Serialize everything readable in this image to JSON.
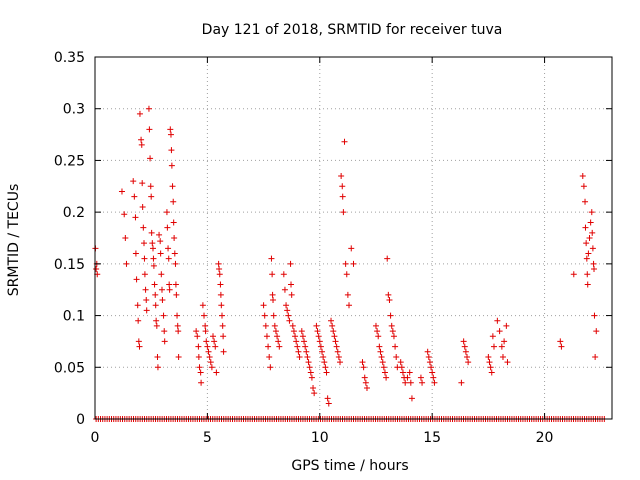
{
  "chart_data": {
    "type": "scatter",
    "title": "Day 121 of 2018, SRMTID for receiver tuva",
    "xlabel": "GPS time / hours",
    "ylabel": "SRMTID / TECUs",
    "xlim": [
      0,
      23
    ],
    "ylim": [
      0,
      0.35
    ],
    "xticks": [
      0,
      5,
      10,
      15,
      20
    ],
    "yticks": [
      0,
      0.05,
      0.1,
      0.15,
      0.2,
      0.25,
      0.3,
      0.35
    ],
    "ytick_labels": [
      "0",
      "0.05",
      "0.1",
      "0.15",
      "0.2",
      "0.25",
      "0.3",
      "0.35"
    ],
    "grid": true,
    "marker": "+",
    "color": "#e00000",
    "zero_line": {
      "x_start": 0.05,
      "x_end": 22.7,
      "y": 0
    },
    "points": [
      [
        0.02,
        0.165
      ],
      [
        0.05,
        0.145
      ],
      [
        0.08,
        0.15
      ],
      [
        0.1,
        0.14
      ],
      [
        1.2,
        0.22
      ],
      [
        1.3,
        0.198
      ],
      [
        1.35,
        0.175
      ],
      [
        1.4,
        0.15
      ],
      [
        1.7,
        0.23
      ],
      [
        1.75,
        0.215
      ],
      [
        1.8,
        0.195
      ],
      [
        1.82,
        0.16
      ],
      [
        1.85,
        0.135
      ],
      [
        1.9,
        0.11
      ],
      [
        1.92,
        0.095
      ],
      [
        1.95,
        0.075
      ],
      [
        1.98,
        0.07
      ],
      [
        2.0,
        0.295
      ],
      [
        2.05,
        0.27
      ],
      [
        2.08,
        0.265
      ],
      [
        2.1,
        0.228
      ],
      [
        2.12,
        0.205
      ],
      [
        2.15,
        0.185
      ],
      [
        2.18,
        0.17
      ],
      [
        2.2,
        0.155
      ],
      [
        2.22,
        0.14
      ],
      [
        2.25,
        0.125
      ],
      [
        2.28,
        0.115
      ],
      [
        2.3,
        0.105
      ],
      [
        2.4,
        0.3
      ],
      [
        2.42,
        0.28
      ],
      [
        2.45,
        0.252
      ],
      [
        2.48,
        0.225
      ],
      [
        2.5,
        0.215
      ],
      [
        2.52,
        0.18
      ],
      [
        2.55,
        0.17
      ],
      [
        2.58,
        0.165
      ],
      [
        2.6,
        0.155
      ],
      [
        2.62,
        0.148
      ],
      [
        2.65,
        0.13
      ],
      [
        2.68,
        0.12
      ],
      [
        2.7,
        0.11
      ],
      [
        2.72,
        0.095
      ],
      [
        2.75,
        0.09
      ],
      [
        2.78,
        0.06
      ],
      [
        2.8,
        0.05
      ],
      [
        2.85,
        0.178
      ],
      [
        2.9,
        0.172
      ],
      [
        2.92,
        0.16
      ],
      [
        2.95,
        0.14
      ],
      [
        2.98,
        0.125
      ],
      [
        3.0,
        0.115
      ],
      [
        3.05,
        0.1
      ],
      [
        3.08,
        0.085
      ],
      [
        3.1,
        0.075
      ],
      [
        3.2,
        0.2
      ],
      [
        3.22,
        0.185
      ],
      [
        3.25,
        0.165
      ],
      [
        3.28,
        0.155
      ],
      [
        3.3,
        0.13
      ],
      [
        3.32,
        0.125
      ],
      [
        3.35,
        0.28
      ],
      [
        3.38,
        0.275
      ],
      [
        3.4,
        0.26
      ],
      [
        3.42,
        0.245
      ],
      [
        3.45,
        0.225
      ],
      [
        3.48,
        0.21
      ],
      [
        3.5,
        0.19
      ],
      [
        3.52,
        0.175
      ],
      [
        3.55,
        0.16
      ],
      [
        3.58,
        0.15
      ],
      [
        3.6,
        0.13
      ],
      [
        3.62,
        0.12
      ],
      [
        3.65,
        0.1
      ],
      [
        3.68,
        0.09
      ],
      [
        3.7,
        0.085
      ],
      [
        3.72,
        0.06
      ],
      [
        4.5,
        0.085
      ],
      [
        4.55,
        0.08
      ],
      [
        4.6,
        0.07
      ],
      [
        4.62,
        0.06
      ],
      [
        4.65,
        0.05
      ],
      [
        4.7,
        0.045
      ],
      [
        4.72,
        0.035
      ],
      [
        4.8,
        0.11
      ],
      [
        4.85,
        0.1
      ],
      [
        4.9,
        0.09
      ],
      [
        4.92,
        0.085
      ],
      [
        4.95,
        0.075
      ],
      [
        5.0,
        0.07
      ],
      [
        5.05,
        0.065
      ],
      [
        5.1,
        0.06
      ],
      [
        5.15,
        0.055
      ],
      [
        5.2,
        0.05
      ],
      [
        5.25,
        0.08
      ],
      [
        5.3,
        0.075
      ],
      [
        5.35,
        0.07
      ],
      [
        5.4,
        0.045
      ],
      [
        5.5,
        0.15
      ],
      [
        5.52,
        0.145
      ],
      [
        5.55,
        0.14
      ],
      [
        5.58,
        0.13
      ],
      [
        5.6,
        0.12
      ],
      [
        5.62,
        0.11
      ],
      [
        5.65,
        0.1
      ],
      [
        5.68,
        0.09
      ],
      [
        5.7,
        0.08
      ],
      [
        5.72,
        0.065
      ],
      [
        7.5,
        0.11
      ],
      [
        7.55,
        0.1
      ],
      [
        7.6,
        0.09
      ],
      [
        7.65,
        0.08
      ],
      [
        7.7,
        0.07
      ],
      [
        7.75,
        0.06
      ],
      [
        7.8,
        0.05
      ],
      [
        7.85,
        0.155
      ],
      [
        7.88,
        0.14
      ],
      [
        7.9,
        0.12
      ],
      [
        7.92,
        0.115
      ],
      [
        7.95,
        0.1
      ],
      [
        8.0,
        0.09
      ],
      [
        8.05,
        0.085
      ],
      [
        8.1,
        0.08
      ],
      [
        8.15,
        0.075
      ],
      [
        8.2,
        0.07
      ],
      [
        8.4,
        0.14
      ],
      [
        8.45,
        0.125
      ],
      [
        8.5,
        0.11
      ],
      [
        8.55,
        0.105
      ],
      [
        8.6,
        0.1
      ],
      [
        8.65,
        0.095
      ],
      [
        8.7,
        0.15
      ],
      [
        8.72,
        0.13
      ],
      [
        8.75,
        0.12
      ],
      [
        8.8,
        0.09
      ],
      [
        8.85,
        0.085
      ],
      [
        8.9,
        0.08
      ],
      [
        8.95,
        0.075
      ],
      [
        9.0,
        0.07
      ],
      [
        9.05,
        0.065
      ],
      [
        9.1,
        0.06
      ],
      [
        9.2,
        0.085
      ],
      [
        9.25,
        0.08
      ],
      [
        9.3,
        0.075
      ],
      [
        9.35,
        0.07
      ],
      [
        9.4,
        0.065
      ],
      [
        9.45,
        0.06
      ],
      [
        9.5,
        0.055
      ],
      [
        9.55,
        0.05
      ],
      [
        9.6,
        0.045
      ],
      [
        9.65,
        0.04
      ],
      [
        9.7,
        0.03
      ],
      [
        9.75,
        0.025
      ],
      [
        9.85,
        0.09
      ],
      [
        9.9,
        0.085
      ],
      [
        9.95,
        0.08
      ],
      [
        10.0,
        0.075
      ],
      [
        10.05,
        0.07
      ],
      [
        10.1,
        0.065
      ],
      [
        10.15,
        0.06
      ],
      [
        10.2,
        0.055
      ],
      [
        10.25,
        0.05
      ],
      [
        10.3,
        0.045
      ],
      [
        10.35,
        0.02
      ],
      [
        10.4,
        0.015
      ],
      [
        10.5,
        0.095
      ],
      [
        10.55,
        0.09
      ],
      [
        10.6,
        0.085
      ],
      [
        10.65,
        0.08
      ],
      [
        10.7,
        0.075
      ],
      [
        10.75,
        0.07
      ],
      [
        10.8,
        0.065
      ],
      [
        10.85,
        0.06
      ],
      [
        10.9,
        0.055
      ],
      [
        10.95,
        0.235
      ],
      [
        11.0,
        0.225
      ],
      [
        11.02,
        0.215
      ],
      [
        11.05,
        0.2
      ],
      [
        11.1,
        0.268
      ],
      [
        11.15,
        0.15
      ],
      [
        11.2,
        0.14
      ],
      [
        11.25,
        0.12
      ],
      [
        11.3,
        0.11
      ],
      [
        11.4,
        0.165
      ],
      [
        11.5,
        0.15
      ],
      [
        11.9,
        0.055
      ],
      [
        11.95,
        0.05
      ],
      [
        12.0,
        0.04
      ],
      [
        12.05,
        0.035
      ],
      [
        12.1,
        0.03
      ],
      [
        12.5,
        0.09
      ],
      [
        12.55,
        0.085
      ],
      [
        12.6,
        0.08
      ],
      [
        12.65,
        0.07
      ],
      [
        12.7,
        0.065
      ],
      [
        12.75,
        0.06
      ],
      [
        12.8,
        0.055
      ],
      [
        12.85,
        0.05
      ],
      [
        12.9,
        0.045
      ],
      [
        12.95,
        0.04
      ],
      [
        13.0,
        0.155
      ],
      [
        13.05,
        0.12
      ],
      [
        13.1,
        0.115
      ],
      [
        13.15,
        0.1
      ],
      [
        13.2,
        0.09
      ],
      [
        13.25,
        0.085
      ],
      [
        13.3,
        0.08
      ],
      [
        13.35,
        0.07
      ],
      [
        13.4,
        0.06
      ],
      [
        13.45,
        0.05
      ],
      [
        13.6,
        0.055
      ],
      [
        13.65,
        0.05
      ],
      [
        13.7,
        0.045
      ],
      [
        13.75,
        0.04
      ],
      [
        13.8,
        0.035
      ],
      [
        13.9,
        0.04
      ],
      [
        14.0,
        0.045
      ],
      [
        14.05,
        0.035
      ],
      [
        14.1,
        0.02
      ],
      [
        14.5,
        0.04
      ],
      [
        14.55,
        0.035
      ],
      [
        14.8,
        0.065
      ],
      [
        14.85,
        0.06
      ],
      [
        14.9,
        0.055
      ],
      [
        14.95,
        0.05
      ],
      [
        15.0,
        0.045
      ],
      [
        15.05,
        0.04
      ],
      [
        15.1,
        0.035
      ],
      [
        16.4,
        0.075
      ],
      [
        16.45,
        0.07
      ],
      [
        16.5,
        0.065
      ],
      [
        16.55,
        0.06
      ],
      [
        16.6,
        0.055
      ],
      [
        16.3,
        0.035
      ],
      [
        17.5,
        0.06
      ],
      [
        17.55,
        0.055
      ],
      [
        17.6,
        0.05
      ],
      [
        17.65,
        0.045
      ],
      [
        17.7,
        0.08
      ],
      [
        17.75,
        0.07
      ],
      [
        17.9,
        0.095
      ],
      [
        18.0,
        0.085
      ],
      [
        18.1,
        0.07
      ],
      [
        18.15,
        0.06
      ],
      [
        18.2,
        0.075
      ],
      [
        18.3,
        0.09
      ],
      [
        18.35,
        0.055
      ],
      [
        20.7,
        0.075
      ],
      [
        20.75,
        0.07
      ],
      [
        21.3,
        0.14
      ],
      [
        21.7,
        0.235
      ],
      [
        21.75,
        0.225
      ],
      [
        21.8,
        0.21
      ],
      [
        21.82,
        0.185
      ],
      [
        21.85,
        0.17
      ],
      [
        21.88,
        0.155
      ],
      [
        21.9,
        0.14
      ],
      [
        21.92,
        0.13
      ],
      [
        21.95,
        0.16
      ],
      [
        22.0,
        0.175
      ],
      [
        22.05,
        0.19
      ],
      [
        22.1,
        0.2
      ],
      [
        22.12,
        0.18
      ],
      [
        22.15,
        0.165
      ],
      [
        22.18,
        0.15
      ],
      [
        22.2,
        0.145
      ],
      [
        22.22,
        0.1
      ],
      [
        22.25,
        0.06
      ],
      [
        22.3,
        0.085
      ]
    ]
  }
}
